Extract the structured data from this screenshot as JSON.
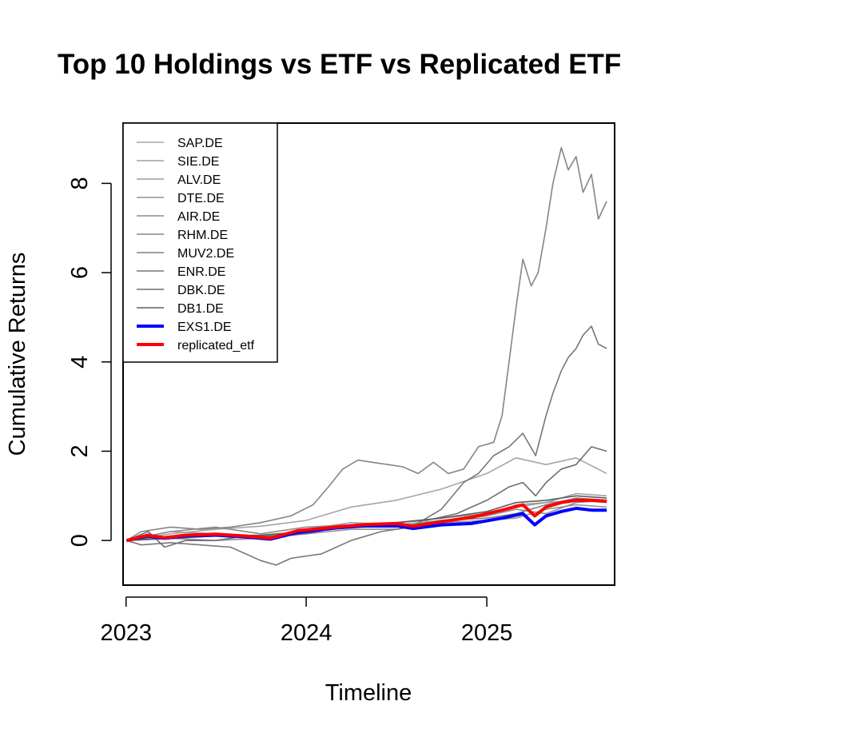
{
  "chart_data": {
    "type": "line",
    "title": "Top 10 Holdings vs ETF vs Replicated ETF",
    "xlabel": "Timeline",
    "ylabel": "Cumulative Returns",
    "xlim": [
      "2022-12-26",
      "2025-09-17"
    ],
    "ylim": [
      -1.0,
      9.35
    ],
    "x_ticks": [
      {
        "date": "2023-01-01",
        "label": "2023"
      },
      {
        "date": "2024-01-01",
        "label": "2024"
      },
      {
        "date": "2025-01-01",
        "label": "2025"
      }
    ],
    "y_ticks": [
      {
        "value": 0,
        "label": "0"
      },
      {
        "value": 2,
        "label": "2"
      },
      {
        "value": 4,
        "label": "4"
      },
      {
        "value": 6,
        "label": "6"
      },
      {
        "value": 8,
        "label": "8"
      }
    ],
    "legend_position": "top-left",
    "series": [
      {
        "name": "SAP.DE",
        "color": "#a6a6a6",
        "width": 1.6,
        "points": [
          [
            "2023-01-02",
            0
          ],
          [
            "2023-04-01",
            0.15
          ],
          [
            "2023-07-01",
            0.25
          ],
          [
            "2023-10-01",
            0.32
          ],
          [
            "2024-01-01",
            0.45
          ],
          [
            "2024-04-01",
            0.75
          ],
          [
            "2024-07-01",
            0.9
          ],
          [
            "2024-10-01",
            1.15
          ],
          [
            "2025-01-01",
            1.5
          ],
          [
            "2025-03-01",
            1.85
          ],
          [
            "2025-05-01",
            1.7
          ],
          [
            "2025-07-01",
            1.85
          ],
          [
            "2025-09-01",
            1.5
          ]
        ]
      },
      {
        "name": "SIE.DE",
        "color": "#a0a0a0",
        "width": 1.6,
        "points": [
          [
            "2023-01-02",
            0
          ],
          [
            "2023-04-01",
            0.2
          ],
          [
            "2023-07-01",
            0.15
          ],
          [
            "2023-10-01",
            0.05
          ],
          [
            "2024-01-01",
            0.25
          ],
          [
            "2024-04-01",
            0.4
          ],
          [
            "2024-07-01",
            0.35
          ],
          [
            "2024-10-01",
            0.45
          ],
          [
            "2025-01-01",
            0.55
          ],
          [
            "2025-03-01",
            0.8
          ],
          [
            "2025-05-01",
            0.85
          ],
          [
            "2025-07-01",
            1.05
          ],
          [
            "2025-09-01",
            1.0
          ]
        ]
      },
      {
        "name": "ALV.DE",
        "color": "#9a9a9a",
        "width": 1.6,
        "points": [
          [
            "2023-01-02",
            0
          ],
          [
            "2023-04-01",
            0.05
          ],
          [
            "2023-07-01",
            0.1
          ],
          [
            "2023-10-01",
            0.12
          ],
          [
            "2024-01-01",
            0.2
          ],
          [
            "2024-04-01",
            0.35
          ],
          [
            "2024-07-01",
            0.4
          ],
          [
            "2024-10-01",
            0.5
          ],
          [
            "2025-01-01",
            0.6
          ],
          [
            "2025-03-01",
            0.75
          ],
          [
            "2025-05-01",
            0.85
          ],
          [
            "2025-07-01",
            0.9
          ],
          [
            "2025-09-01",
            0.85
          ]
        ]
      },
      {
        "name": "DTE.DE",
        "color": "#939393",
        "width": 1.6,
        "points": [
          [
            "2023-01-02",
            0
          ],
          [
            "2023-04-01",
            0.05
          ],
          [
            "2023-07-01",
            0.0
          ],
          [
            "2023-10-01",
            0.05
          ],
          [
            "2024-01-01",
            0.15
          ],
          [
            "2024-04-01",
            0.25
          ],
          [
            "2024-07-01",
            0.25
          ],
          [
            "2024-10-01",
            0.4
          ],
          [
            "2025-01-01",
            0.45
          ],
          [
            "2025-03-01",
            0.5
          ],
          [
            "2025-05-01",
            0.7
          ],
          [
            "2025-07-01",
            0.8
          ],
          [
            "2025-09-01",
            0.75
          ]
        ]
      },
      {
        "name": "AIR.DE",
        "color": "#8c8c8c",
        "width": 1.6,
        "points": [
          [
            "2023-01-02",
            0
          ],
          [
            "2023-04-01",
            0.2
          ],
          [
            "2023-07-01",
            0.3
          ],
          [
            "2023-10-01",
            0.15
          ],
          [
            "2024-01-01",
            0.3
          ],
          [
            "2024-04-01",
            0.35
          ],
          [
            "2024-07-01",
            0.3
          ],
          [
            "2024-10-01",
            0.45
          ],
          [
            "2025-01-01",
            0.55
          ],
          [
            "2025-03-01",
            0.7
          ],
          [
            "2025-05-01",
            0.6
          ],
          [
            "2025-07-01",
            0.85
          ],
          [
            "2025-09-01",
            0.9
          ]
        ]
      },
      {
        "name": "RHM.DE",
        "color": "#858585",
        "width": 1.6,
        "points": [
          [
            "2023-01-02",
            0
          ],
          [
            "2023-02-01",
            0.2
          ],
          [
            "2023-04-01",
            0.3
          ],
          [
            "2023-06-01",
            0.25
          ],
          [
            "2023-08-01",
            0.3
          ],
          [
            "2023-10-01",
            0.4
          ],
          [
            "2023-12-01",
            0.55
          ],
          [
            "2024-01-15",
            0.8
          ],
          [
            "2024-02-15",
            1.2
          ],
          [
            "2024-03-15",
            1.6
          ],
          [
            "2024-04-15",
            1.8
          ],
          [
            "2024-05-15",
            1.75
          ],
          [
            "2024-06-15",
            1.7
          ],
          [
            "2024-07-15",
            1.65
          ],
          [
            "2024-08-15",
            1.5
          ],
          [
            "2024-09-15",
            1.75
          ],
          [
            "2024-10-15",
            1.5
          ],
          [
            "2024-11-15",
            1.6
          ],
          [
            "2024-12-15",
            2.1
          ],
          [
            "2025-01-15",
            2.2
          ],
          [
            "2025-02-01",
            2.8
          ],
          [
            "2025-02-15",
            4.0
          ],
          [
            "2025-03-01",
            5.2
          ],
          [
            "2025-03-15",
            6.3
          ],
          [
            "2025-04-01",
            5.7
          ],
          [
            "2025-04-15",
            6.0
          ],
          [
            "2025-05-01",
            7.0
          ],
          [
            "2025-05-15",
            8.0
          ],
          [
            "2025-06-01",
            8.8
          ],
          [
            "2025-06-15",
            8.3
          ],
          [
            "2025-07-01",
            8.6
          ],
          [
            "2025-07-15",
            7.8
          ],
          [
            "2025-08-01",
            8.2
          ],
          [
            "2025-08-15",
            7.2
          ],
          [
            "2025-09-01",
            7.6
          ]
        ]
      },
      {
        "name": "MUV2.DE",
        "color": "#7e7e7e",
        "width": 1.6,
        "points": [
          [
            "2023-01-02",
            0
          ],
          [
            "2023-04-01",
            0.1
          ],
          [
            "2023-07-01",
            0.15
          ],
          [
            "2023-10-01",
            0.1
          ],
          [
            "2024-01-01",
            0.2
          ],
          [
            "2024-04-01",
            0.3
          ],
          [
            "2024-07-01",
            0.3
          ],
          [
            "2024-10-01",
            0.45
          ],
          [
            "2025-01-01",
            0.5
          ],
          [
            "2025-03-01",
            0.6
          ],
          [
            "2025-05-01",
            0.8
          ],
          [
            "2025-07-01",
            0.95
          ],
          [
            "2025-09-01",
            0.9
          ]
        ]
      },
      {
        "name": "ENR.DE",
        "color": "#777777",
        "width": 1.6,
        "points": [
          [
            "2023-01-02",
            0
          ],
          [
            "2023-02-01",
            -0.1
          ],
          [
            "2023-04-01",
            -0.05
          ],
          [
            "2023-06-01",
            -0.1
          ],
          [
            "2023-08-01",
            -0.15
          ],
          [
            "2023-10-01",
            -0.45
          ],
          [
            "2023-11-01",
            -0.55
          ],
          [
            "2023-12-01",
            -0.4
          ],
          [
            "2024-02-01",
            -0.3
          ],
          [
            "2024-04-01",
            0.0
          ],
          [
            "2024-06-01",
            0.2
          ],
          [
            "2024-08-01",
            0.3
          ],
          [
            "2024-10-01",
            0.7
          ],
          [
            "2024-11-15",
            1.3
          ],
          [
            "2024-12-15",
            1.5
          ],
          [
            "2025-01-15",
            1.9
          ],
          [
            "2025-02-15",
            2.1
          ],
          [
            "2025-03-15",
            2.4
          ],
          [
            "2025-04-10",
            1.9
          ],
          [
            "2025-05-01",
            2.8
          ],
          [
            "2025-05-15",
            3.3
          ],
          [
            "2025-06-01",
            3.8
          ],
          [
            "2025-06-15",
            4.1
          ],
          [
            "2025-07-01",
            4.3
          ],
          [
            "2025-07-15",
            4.6
          ],
          [
            "2025-08-01",
            4.8
          ],
          [
            "2025-08-15",
            4.4
          ],
          [
            "2025-09-01",
            4.3
          ]
        ]
      },
      {
        "name": "DBK.DE",
        "color": "#6f6f6f",
        "width": 1.6,
        "points": [
          [
            "2023-01-02",
            0
          ],
          [
            "2023-02-15",
            0.2
          ],
          [
            "2023-03-20",
            -0.15
          ],
          [
            "2023-05-01",
            0.0
          ],
          [
            "2023-07-01",
            0.0
          ],
          [
            "2023-09-01",
            0.1
          ],
          [
            "2023-11-01",
            0.1
          ],
          [
            "2024-01-01",
            0.15
          ],
          [
            "2024-04-01",
            0.35
          ],
          [
            "2024-07-01",
            0.4
          ],
          [
            "2024-09-01",
            0.45
          ],
          [
            "2024-11-01",
            0.6
          ],
          [
            "2025-01-01",
            0.9
          ],
          [
            "2025-02-15",
            1.2
          ],
          [
            "2025-03-15",
            1.3
          ],
          [
            "2025-04-10",
            1.0
          ],
          [
            "2025-05-01",
            1.3
          ],
          [
            "2025-06-01",
            1.6
          ],
          [
            "2025-07-01",
            1.7
          ],
          [
            "2025-08-01",
            2.1
          ],
          [
            "2025-09-01",
            2.0
          ]
        ]
      },
      {
        "name": "DB1.DE",
        "color": "#5e5e5e",
        "width": 1.6,
        "points": [
          [
            "2023-01-02",
            0
          ],
          [
            "2023-04-01",
            0.05
          ],
          [
            "2023-07-01",
            0.1
          ],
          [
            "2023-10-01",
            0.12
          ],
          [
            "2024-01-01",
            0.2
          ],
          [
            "2024-04-01",
            0.3
          ],
          [
            "2024-07-01",
            0.4
          ],
          [
            "2024-10-01",
            0.5
          ],
          [
            "2025-01-01",
            0.65
          ],
          [
            "2025-03-01",
            0.85
          ],
          [
            "2025-05-01",
            0.9
          ],
          [
            "2025-07-01",
            1.0
          ],
          [
            "2025-09-01",
            0.95
          ]
        ]
      },
      {
        "name": "EXS1.DE",
        "color": "#0000ff",
        "width": 4,
        "points": [
          [
            "2023-01-02",
            0
          ],
          [
            "2023-02-15",
            0.1
          ],
          [
            "2023-03-20",
            0.05
          ],
          [
            "2023-05-01",
            0.1
          ],
          [
            "2023-07-01",
            0.12
          ],
          [
            "2023-09-01",
            0.08
          ],
          [
            "2023-10-20",
            0.03
          ],
          [
            "2023-12-15",
            0.18
          ],
          [
            "2024-03-01",
            0.28
          ],
          [
            "2024-05-01",
            0.33
          ],
          [
            "2024-07-01",
            0.33
          ],
          [
            "2024-08-05",
            0.27
          ],
          [
            "2024-10-01",
            0.35
          ],
          [
            "2024-12-01",
            0.38
          ],
          [
            "2025-02-01",
            0.5
          ],
          [
            "2025-03-15",
            0.6
          ],
          [
            "2025-04-08",
            0.35
          ],
          [
            "2025-05-01",
            0.55
          ],
          [
            "2025-06-01",
            0.65
          ],
          [
            "2025-07-01",
            0.72
          ],
          [
            "2025-08-01",
            0.68
          ],
          [
            "2025-09-01",
            0.68
          ]
        ]
      },
      {
        "name": "replicated_etf",
        "color": "#ff0000",
        "width": 4,
        "points": [
          [
            "2023-01-02",
            0
          ],
          [
            "2023-02-15",
            0.12
          ],
          [
            "2023-03-20",
            0.06
          ],
          [
            "2023-05-01",
            0.12
          ],
          [
            "2023-07-01",
            0.14
          ],
          [
            "2023-09-01",
            0.1
          ],
          [
            "2023-10-20",
            0.05
          ],
          [
            "2023-12-15",
            0.22
          ],
          [
            "2024-03-01",
            0.3
          ],
          [
            "2024-05-01",
            0.36
          ],
          [
            "2024-07-01",
            0.38
          ],
          [
            "2024-08-05",
            0.32
          ],
          [
            "2024-10-01",
            0.42
          ],
          [
            "2024-12-01",
            0.52
          ],
          [
            "2025-02-01",
            0.68
          ],
          [
            "2025-03-15",
            0.8
          ],
          [
            "2025-04-08",
            0.55
          ],
          [
            "2025-05-01",
            0.75
          ],
          [
            "2025-06-01",
            0.85
          ],
          [
            "2025-07-01",
            0.9
          ],
          [
            "2025-08-01",
            0.9
          ],
          [
            "2025-09-01",
            0.88
          ]
        ]
      }
    ]
  }
}
